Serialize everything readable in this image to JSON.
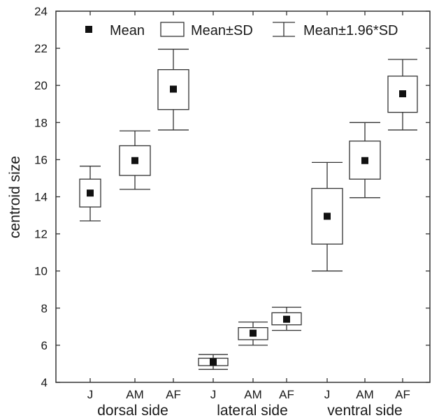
{
  "chart_data": {
    "type": "box",
    "ylabel": "centroid size",
    "xlabel": "",
    "ylim": [
      4,
      24
    ],
    "yticks": [
      4,
      6,
      8,
      10,
      12,
      14,
      16,
      18,
      20,
      22,
      24
    ],
    "legend": {
      "placement": "top",
      "entries": [
        {
          "symbol": "mean-marker",
          "label": "Mean"
        },
        {
          "symbol": "box",
          "label": "Mean±SD"
        },
        {
          "symbol": "whisker",
          "label": "Mean±1.96*SD"
        }
      ]
    },
    "groups": [
      {
        "label": "dorsal side",
        "categories": [
          "J",
          "AM",
          "AF"
        ]
      },
      {
        "label": "lateral side",
        "categories": [
          "J",
          "AM",
          "AF"
        ]
      },
      {
        "label": "ventral side",
        "categories": [
          "J",
          "AM",
          "AF"
        ]
      }
    ],
    "series": [
      {
        "group": "dorsal side",
        "category": "J",
        "mean": 14.2,
        "sd_low": 13.45,
        "sd_high": 14.95,
        "ci_low": 12.7,
        "ci_high": 15.65
      },
      {
        "group": "dorsal side",
        "category": "AM",
        "mean": 15.95,
        "sd_low": 15.15,
        "sd_high": 16.75,
        "ci_low": 14.4,
        "ci_high": 17.55
      },
      {
        "group": "dorsal side",
        "category": "AF",
        "mean": 19.8,
        "sd_low": 18.7,
        "sd_high": 20.85,
        "ci_low": 17.6,
        "ci_high": 21.95
      },
      {
        "group": "lateral side",
        "category": "J",
        "mean": 5.1,
        "sd_low": 4.9,
        "sd_high": 5.3,
        "ci_low": 4.7,
        "ci_high": 5.5
      },
      {
        "group": "lateral side",
        "category": "AM",
        "mean": 6.65,
        "sd_low": 6.3,
        "sd_high": 6.95,
        "ci_low": 6.0,
        "ci_high": 7.25
      },
      {
        "group": "lateral side",
        "category": "AF",
        "mean": 7.4,
        "sd_low": 7.1,
        "sd_high": 7.75,
        "ci_low": 6.8,
        "ci_high": 8.05
      },
      {
        "group": "ventral side",
        "category": "J",
        "mean": 12.95,
        "sd_low": 11.45,
        "sd_high": 14.45,
        "ci_low": 10.0,
        "ci_high": 15.85
      },
      {
        "group": "ventral side",
        "category": "AM",
        "mean": 15.95,
        "sd_low": 14.95,
        "sd_high": 17.0,
        "ci_low": 13.95,
        "ci_high": 18.0
      },
      {
        "group": "ventral side",
        "category": "AF",
        "mean": 19.55,
        "sd_low": 18.55,
        "sd_high": 20.5,
        "ci_low": 17.6,
        "ci_high": 21.4
      }
    ],
    "grid": false,
    "colors": {
      "box_stroke": "#333333",
      "mean_marker": "#111111",
      "axis": "#333333"
    }
  }
}
